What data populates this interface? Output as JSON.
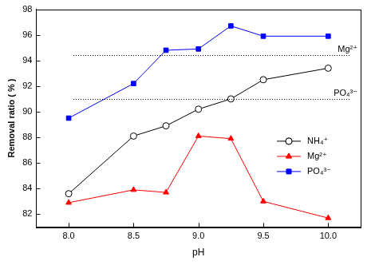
{
  "chart_data": {
    "type": "line",
    "x_label": "pH",
    "y_label": "Removal ratio ( % )",
    "x": [
      8.0,
      8.5,
      8.75,
      9.0,
      9.25,
      9.5,
      10.0
    ],
    "series": [
      {
        "name": "NH₄⁺",
        "color": "#000000",
        "marker": "open_circle",
        "values": [
          83.6,
          88.1,
          88.9,
          90.2,
          91.0,
          92.5,
          93.4
        ]
      },
      {
        "name": "Mg²⁺",
        "color": "#ff0000",
        "marker": "triangle",
        "values": [
          82.9,
          83.9,
          83.7,
          88.1,
          87.9,
          83.0,
          81.7
        ]
      },
      {
        "name": "PO₄³⁻",
        "color": "#0000ff",
        "marker": "square",
        "values": [
          89.5,
          92.2,
          94.8,
          94.9,
          96.7,
          95.9,
          95.9
        ]
      }
    ],
    "annotations": [
      {
        "label": "Mg²⁺",
        "value": 94.4,
        "line_style": "dotted"
      },
      {
        "label": "PO₄³⁻",
        "value": 91.0,
        "line_style": "dotted"
      }
    ],
    "xlim": [
      7.75,
      10.25
    ],
    "xticks": [
      {
        "value": 8,
        "label": "8.0"
      },
      8.5,
      {
        "value": 9,
        "label": "9.0"
      },
      9.5,
      {
        "value": 10,
        "label": "10.0"
      }
    ],
    "ylim": [
      81,
      98
    ],
    "yticks": [
      82,
      84,
      86,
      88,
      90,
      92,
      94,
      96,
      98
    ],
    "grid": false,
    "legend": "lower right"
  }
}
